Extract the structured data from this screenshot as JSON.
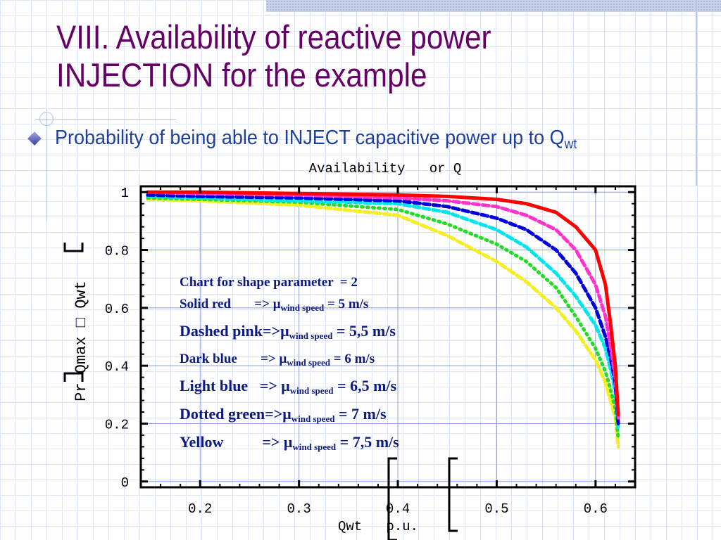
{
  "slide": {
    "title_line1": "VIII. Availability of reactive power",
    "title_line2": "INJECTION for the example",
    "bullet_text": "Probability of being able to INJECT capacitive power up to Q",
    "bullet_sub": "wt"
  },
  "legend": {
    "header": "Chart for shape parameter  = 2",
    "mu": "μ",
    "sub": "wind speed",
    "entries": [
      {
        "label": "Solid red       => ",
        "value": " = 5 m/s"
      },
      {
        "label": "Dashed pink=>",
        "value": " = 5,5 m/s"
      },
      {
        "label": "Dark blue       => ",
        "value": " = 6 m/s"
      },
      {
        "label": "Light blue   => ",
        "value": " = 6,5 m/s"
      },
      {
        "label": "Dotted green=>",
        "value": " = 7 m/s"
      },
      {
        "label": "Yellow          => ",
        "value": " = 7,5 m/s"
      }
    ]
  },
  "chart_data": {
    "type": "line",
    "title": "Availability   or Q",
    "xlabel": "Qwt   p.u.",
    "ylabel": "Pr Qmax □ Qwt",
    "xlim": [
      0.14,
      0.64
    ],
    "ylim": [
      -0.02,
      1.02
    ],
    "xticks": [
      0.2,
      0.3,
      0.4,
      0.5,
      0.6
    ],
    "xtick_labels": [
      "0.2",
      "0.3",
      "0.4",
      "0.5",
      "0.6"
    ],
    "yticks": [
      0,
      0.2,
      0.4,
      0.6,
      0.8,
      1
    ],
    "ytick_labels": [
      "0",
      "0.2",
      "0.4",
      "0.6",
      "0.8",
      "1"
    ],
    "grid": true,
    "series": [
      {
        "style": "solid",
        "color": "#ff0000",
        "x": [
          0.147,
          0.2,
          0.3,
          0.4,
          0.45,
          0.5,
          0.53,
          0.56,
          0.58,
          0.6,
          0.61,
          0.615,
          0.62,
          0.623
        ],
        "y": [
          1.0,
          1.0,
          0.995,
          0.99,
          0.985,
          0.975,
          0.96,
          0.93,
          0.88,
          0.8,
          0.68,
          0.55,
          0.4,
          0.23
        ]
      },
      {
        "style": "dashed",
        "color": "#ff33cc",
        "x": [
          0.147,
          0.2,
          0.3,
          0.4,
          0.45,
          0.5,
          0.53,
          0.56,
          0.58,
          0.6,
          0.61,
          0.615,
          0.62,
          0.623
        ],
        "y": [
          1.0,
          0.995,
          0.99,
          0.98,
          0.97,
          0.95,
          0.92,
          0.87,
          0.8,
          0.68,
          0.57,
          0.47,
          0.36,
          0.22
        ]
      },
      {
        "style": "dashed",
        "color": "#0000dd",
        "x": [
          0.147,
          0.2,
          0.3,
          0.4,
          0.45,
          0.5,
          0.53,
          0.56,
          0.58,
          0.6,
          0.61,
          0.615,
          0.62,
          0.623
        ],
        "y": [
          0.99,
          0.985,
          0.98,
          0.97,
          0.95,
          0.91,
          0.87,
          0.8,
          0.72,
          0.6,
          0.5,
          0.43,
          0.34,
          0.2
        ]
      },
      {
        "style": "dashed",
        "color": "#00e5ee",
        "x": [
          0.147,
          0.2,
          0.3,
          0.4,
          0.45,
          0.5,
          0.53,
          0.56,
          0.58,
          0.6,
          0.61,
          0.615,
          0.62,
          0.623
        ],
        "y": [
          0.985,
          0.98,
          0.97,
          0.96,
          0.93,
          0.87,
          0.81,
          0.72,
          0.64,
          0.54,
          0.46,
          0.39,
          0.31,
          0.18
        ]
      },
      {
        "style": "dotted",
        "color": "#22dd22",
        "x": [
          0.147,
          0.2,
          0.3,
          0.4,
          0.45,
          0.5,
          0.53,
          0.56,
          0.58,
          0.6,
          0.61,
          0.615,
          0.62,
          0.623
        ],
        "y": [
          0.98,
          0.975,
          0.965,
          0.94,
          0.89,
          0.82,
          0.76,
          0.67,
          0.57,
          0.46,
          0.38,
          0.32,
          0.25,
          0.15
        ]
      },
      {
        "style": "dashed",
        "color": "#f5ee22",
        "x": [
          0.147,
          0.2,
          0.3,
          0.4,
          0.45,
          0.5,
          0.53,
          0.56,
          0.58,
          0.6,
          0.61,
          0.615,
          0.62,
          0.623
        ],
        "y": [
          0.975,
          0.97,
          0.955,
          0.92,
          0.85,
          0.76,
          0.69,
          0.6,
          0.52,
          0.42,
          0.34,
          0.28,
          0.22,
          0.12
        ]
      }
    ]
  }
}
